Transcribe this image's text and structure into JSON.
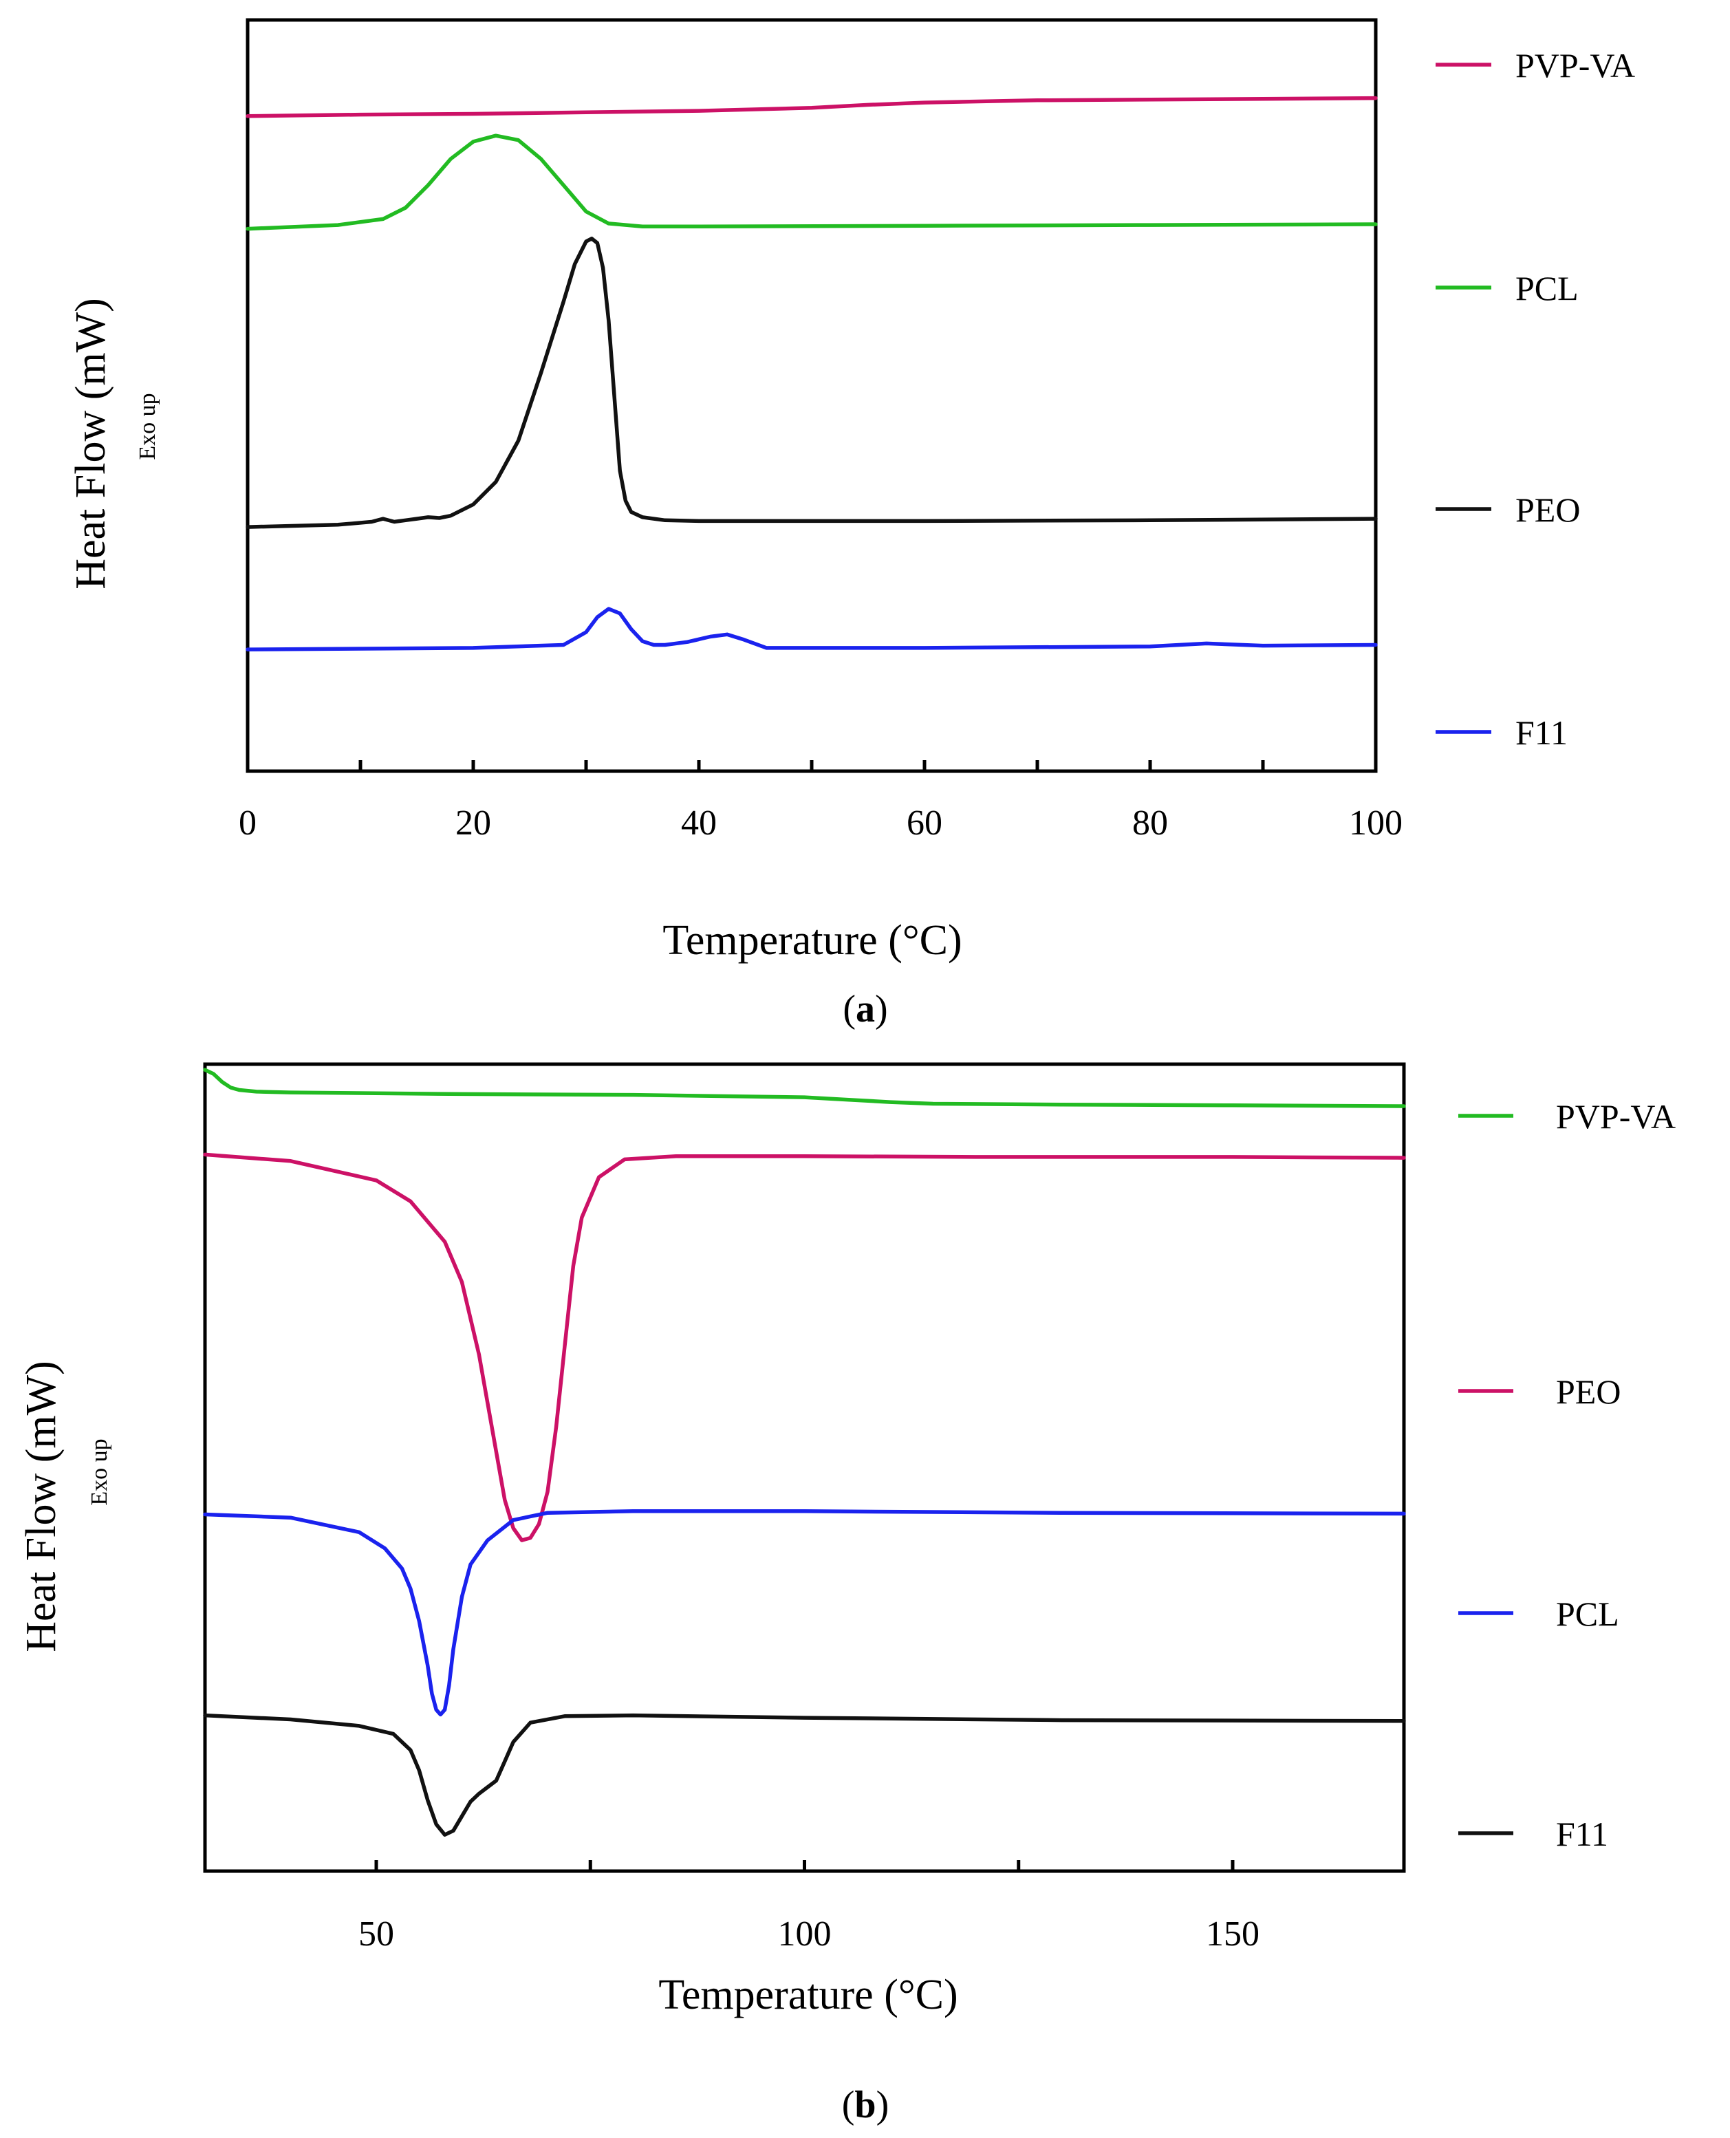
{
  "chart_data": [
    {
      "id": "a",
      "type": "line",
      "caption": {
        "open": "(",
        "letter": "a",
        "close": ")"
      },
      "xlabel": "Temperature (°C)",
      "ylabel": "Heat Flow (mW)",
      "ylabel_sub": "Exo up",
      "xlim": [
        0,
        100
      ],
      "ylim": [
        0,
        100
      ],
      "xticks": [
        0,
        20,
        40,
        60,
        80,
        100
      ],
      "xticks_minor": [
        10,
        30,
        50,
        70,
        90
      ],
      "yticks": [],
      "legend_position": "right",
      "series": [
        {
          "name": "PVP-VA",
          "color": "#cc1166",
          "x": [
            0,
            10,
            20,
            30,
            40,
            50,
            55,
            60,
            70,
            80,
            90,
            100
          ],
          "y": [
            87.2,
            87.4,
            87.5,
            87.7,
            87.9,
            88.3,
            88.7,
            89.0,
            89.3,
            89.4,
            89.5,
            89.6
          ]
        },
        {
          "name": "PCL",
          "color": "#22bb22",
          "x": [
            0,
            8,
            12,
            14,
            16,
            18,
            20,
            22,
            24,
            26,
            28,
            30,
            32,
            35,
            40,
            60,
            80,
            100
          ],
          "y": [
            72.2,
            72.7,
            73.5,
            75.0,
            78.0,
            81.5,
            83.8,
            84.6,
            84.0,
            81.5,
            78.0,
            74.5,
            72.9,
            72.5,
            72.5,
            72.6,
            72.7,
            72.8
          ]
        },
        {
          "name": "PEO",
          "color": "#111111",
          "x": [
            0,
            8,
            11,
            12,
            13,
            14,
            15,
            16,
            17,
            18,
            20,
            22,
            24,
            26,
            28,
            29,
            30,
            30.5,
            31,
            31.5,
            32,
            32.5,
            33,
            33.5,
            34,
            35,
            37,
            40,
            60,
            80,
            100
          ],
          "y": [
            32.5,
            32.8,
            33.2,
            33.6,
            33.2,
            33.4,
            33.6,
            33.8,
            33.7,
            34.0,
            35.5,
            38.5,
            44.0,
            53.0,
            62.5,
            67.5,
            70.5,
            70.9,
            70.3,
            67.0,
            60.0,
            50.0,
            40.0,
            36.0,
            34.5,
            33.8,
            33.4,
            33.3,
            33.3,
            33.4,
            33.6
          ]
        },
        {
          "name": "F11",
          "color": "#1a22ee",
          "x": [
            0,
            20,
            28,
            30,
            31,
            32,
            33,
            34,
            35,
            36,
            37,
            39,
            41,
            42.5,
            44,
            46,
            60,
            80,
            85,
            90,
            100
          ],
          "y": [
            16.2,
            16.4,
            16.8,
            18.5,
            20.5,
            21.6,
            21.0,
            18.9,
            17.3,
            16.8,
            16.8,
            17.2,
            17.9,
            18.2,
            17.5,
            16.4,
            16.4,
            16.6,
            17.0,
            16.7,
            16.8
          ]
        }
      ],
      "legend_order": [
        "PVP-VA",
        "PCL",
        "PEO",
        "F11"
      ]
    },
    {
      "id": "b",
      "type": "line",
      "caption": {
        "open": "(",
        "letter": "b",
        "close": ")"
      },
      "xlabel": "Temperature (°C)",
      "ylabel": "Heat Flow (mW)",
      "ylabel_sub": "Exo up",
      "xlim": [
        30,
        170
      ],
      "ylim": [
        0,
        100
      ],
      "xticks": [
        50,
        100,
        150
      ],
      "xticks_minor": [
        75,
        125
      ],
      "yticks": [],
      "legend_position": "right",
      "series": [
        {
          "name": "PVP-VA",
          "color": "#22bb22",
          "x": [
            30,
            31,
            32,
            33,
            34,
            36,
            40,
            60,
            80,
            100,
            105,
            110,
            115,
            130,
            150,
            170
          ],
          "y": [
            99.3,
            98.8,
            97.8,
            97.1,
            96.8,
            96.6,
            96.5,
            96.3,
            96.2,
            95.9,
            95.6,
            95.3,
            95.1,
            95.0,
            94.9,
            94.8
          ]
        },
        {
          "name": "PEO",
          "color": "#cc1166",
          "x": [
            30,
            40,
            50,
            54,
            58,
            60,
            62,
            64,
            65,
            66,
            67,
            68,
            69,
            70,
            71,
            72,
            73,
            74,
            76,
            79,
            85,
            100,
            120,
            150,
            170
          ],
          "y": [
            88.8,
            88.0,
            85.6,
            83.0,
            78.0,
            73.0,
            64.0,
            52.0,
            46.0,
            42.5,
            41.0,
            41.3,
            43.0,
            47.0,
            55.0,
            65.0,
            75.0,
            81.0,
            86.0,
            88.2,
            88.6,
            88.6,
            88.5,
            88.5,
            88.4
          ]
        },
        {
          "name": "PCL",
          "color": "#1a22ee",
          "x": [
            30,
            40,
            48,
            51,
            53,
            54,
            55,
            56,
            56.5,
            57,
            57.5,
            58,
            58.5,
            59,
            60,
            61,
            63,
            66,
            70,
            80,
            100,
            130,
            170
          ],
          "y": [
            44.2,
            43.8,
            42.0,
            40.0,
            37.5,
            35.0,
            31.0,
            25.5,
            22.0,
            20.0,
            19.4,
            20.0,
            23.0,
            27.5,
            34.0,
            38.0,
            41.0,
            43.5,
            44.4,
            44.6,
            44.6,
            44.4,
            44.3
          ]
        },
        {
          "name": "F11",
          "color": "#111111",
          "x": [
            30,
            40,
            48,
            52,
            54,
            55,
            56,
            57,
            58,
            59,
            60,
            61,
            62,
            63,
            64,
            65,
            66,
            68,
            72,
            80,
            100,
            130,
            170
          ],
          "y": [
            19.3,
            18.8,
            18.0,
            17.0,
            15.0,
            12.5,
            8.8,
            5.8,
            4.5,
            5.0,
            6.8,
            8.6,
            9.6,
            10.4,
            11.2,
            13.6,
            16.0,
            18.4,
            19.2,
            19.3,
            19.0,
            18.7,
            18.6
          ]
        }
      ],
      "legend_order": [
        "PVP-VA",
        "PEO",
        "PCL",
        "F11"
      ]
    }
  ]
}
